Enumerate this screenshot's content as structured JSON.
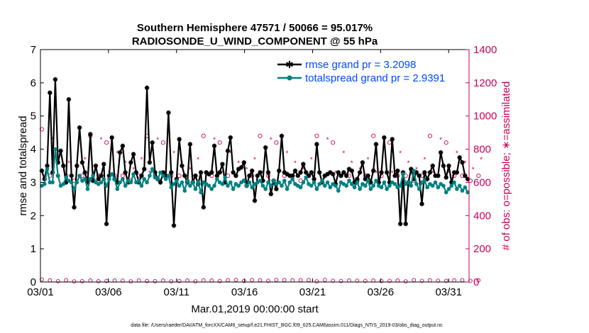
{
  "chart_data": {
    "type": "line",
    "title_line1": "Southern Hemisphere 47571 / 50066 = 95.017%",
    "title_line2": "RADIOSONDE_U_WIND_COMPONENT @ 55 hPa",
    "xlabel": "Mar.01,2019 00:00:00 start",
    "ylabel": "rmse and totalspread",
    "ylabel_right": "# of obs: o=possible; ∗=assimilated",
    "footnote": "data file: /Users/raeder/DAI/ATM_forcXX/CAM6_setup/f.e21.FHIST_BGC.f09_025.CAM6assim.011/Diags_NTrS_2019-03/obs_diag_output.nc",
    "xlim": [
      0,
      31.5
    ],
    "ylim": [
      0,
      7
    ],
    "ylim_right": [
      0,
      1400
    ],
    "x_tick_values": [
      0,
      5,
      10,
      15,
      20,
      25,
      30
    ],
    "x_tick_labels": [
      "03/01",
      "03/06",
      "03/11",
      "03/16",
      "03/21",
      "03/26",
      "03/31"
    ],
    "y_ticks": [
      0,
      1,
      2,
      3,
      4,
      5,
      6,
      7
    ],
    "y_ticks_right": [
      0,
      200,
      400,
      600,
      800,
      1000,
      1200,
      1400
    ],
    "colors": {
      "rmse": "#000000",
      "spread": "#008080",
      "obs": "#c8005a",
      "legend_text": "#0048ff"
    },
    "series": [
      {
        "name": "rmse grand pr = 3.2098",
        "key": "rmse",
        "values": [
          3.35,
          3.1,
          3.5,
          5.7,
          3.3,
          6.1,
          3.6,
          3.95,
          3.5,
          3.0,
          5.5,
          3.2,
          2.25,
          3.5,
          4.65,
          3.6,
          3.3,
          3.0,
          4.45,
          3.05,
          3.5,
          3.1,
          3.2,
          3.55,
          1.75,
          3.2,
          4.35,
          3.1,
          3.0,
          3.9,
          4.1,
          3.3,
          3.0,
          3.6,
          3.85,
          3.3,
          3.0,
          3.2,
          3.4,
          5.85,
          3.6,
          4.2,
          3.3,
          3.1,
          3.0,
          3.3,
          3.2,
          5.1,
          3.3,
          1.7,
          3.1,
          4.3,
          3.5,
          3.2,
          3.0,
          4.15,
          3.0,
          3.2,
          2.95,
          3.3,
          2.25,
          3.3,
          3.25,
          3.3,
          4.1,
          3.2,
          3.3,
          3.55,
          3.0,
          3.95,
          4.35,
          3.3,
          3.2,
          3.4,
          3.45,
          3.6,
          2.9,
          3.2,
          3.35,
          2.45,
          3.2,
          3.3,
          3.05,
          4.05,
          3.3,
          2.65,
          3.05,
          2.8,
          3.35,
          4.4,
          3.3,
          3.25,
          3.2,
          3.2,
          3.35,
          3.2,
          3.3,
          3.55,
          3.3,
          3.2,
          3.3,
          3.1,
          4.15,
          3.3,
          3.0,
          3.2,
          3.25,
          3.3,
          3.25,
          2.95,
          3.3,
          3.2,
          3.3,
          3.2,
          3.4,
          3.35,
          3.0,
          3.1,
          3.3,
          3.6,
          3.1,
          3.2,
          3.0,
          3.35,
          4.15,
          3.0,
          3.3,
          4.35,
          3.3,
          3.0,
          4.3,
          3.2,
          3.35,
          1.75,
          3.3,
          1.75,
          3.0,
          3.4,
          3.1,
          3.3,
          3.2,
          2.35,
          3.3,
          3.1,
          3.3,
          3.5,
          3.2,
          3.2,
          3.9,
          3.5,
          3.15,
          3.5,
          3.0,
          3.3,
          3.3,
          3.75,
          3.6,
          3.2,
          3.1
        ]
      },
      {
        "name": "totalspread grand pr = 2.9391",
        "key": "spread",
        "values": [
          2.9,
          2.95,
          3.4,
          3.0,
          3.0,
          4.0,
          3.2,
          2.9,
          2.95,
          3.15,
          3.05,
          3.0,
          2.8,
          3.0,
          3.2,
          3.05,
          3.1,
          2.8,
          3.1,
          3.2,
          3.0,
          2.95,
          3.0,
          3.1,
          2.9,
          3.1,
          3.25,
          3.1,
          2.8,
          3.0,
          3.1,
          2.9,
          3.05,
          3.0,
          3.25,
          3.0,
          3.05,
          2.9,
          3.1,
          3.0,
          3.2,
          3.4,
          3.15,
          3.1,
          3.3,
          3.2,
          3.1,
          3.2,
          2.85,
          2.95,
          3.05,
          2.9,
          3.0,
          2.75,
          3.05,
          2.9,
          3.0,
          2.8,
          3.0,
          2.7,
          3.0,
          2.95,
          2.9,
          2.8,
          2.9,
          3.1,
          3.0,
          2.95,
          3.15,
          2.9,
          3.0,
          2.8,
          2.95,
          2.9,
          3.0,
          3.05,
          2.9,
          3.0,
          2.85,
          2.95,
          3.0,
          3.05,
          2.9,
          2.8,
          3.0,
          2.9,
          3.05,
          2.95,
          3.0,
          2.9,
          3.05,
          2.8,
          3.0,
          3.1,
          2.95,
          2.9,
          2.85,
          3.0,
          3.15,
          2.95,
          2.9,
          3.0,
          2.8,
          2.95,
          3.05,
          2.9,
          3.0,
          2.85,
          2.95,
          2.9,
          2.75,
          3.0,
          2.95,
          2.9,
          3.05,
          2.95,
          2.85,
          3.0,
          2.8,
          2.95,
          2.9,
          3.05,
          2.8,
          2.9,
          3.05,
          2.9,
          2.85,
          3.0,
          2.8,
          2.9,
          3.0,
          2.95,
          2.85,
          2.9,
          3.25,
          2.95,
          3.0,
          2.9,
          3.35,
          2.95,
          2.8,
          3.0,
          3.05,
          2.85,
          2.95,
          2.9,
          3.0,
          2.85,
          2.95,
          2.9,
          2.7,
          2.8,
          2.9,
          3.0,
          2.8,
          2.9,
          2.75,
          2.85,
          2.7
        ]
      }
    ],
    "obs_possible_count": [
      920,
      660,
      830,
      640,
      900,
      770,
      640,
      820,
      760,
      640,
      760,
      840,
      610,
      720,
      850,
      640,
      780,
      660,
      880,
      700,
      760,
      640,
      900,
      660,
      840,
      700,
      770,
      640,
      820,
      760,
      640,
      760,
      840,
      610,
      720,
      850,
      640,
      780,
      660,
      880,
      700,
      760,
      640,
      900,
      660,
      840,
      700,
      770,
      640,
      820,
      760,
      640,
      760,
      840,
      610,
      720,
      850,
      640,
      780,
      660,
      880,
      700,
      760,
      640,
      900,
      660,
      840,
      700,
      770,
      640,
      820,
      760,
      640,
      760,
      840,
      610,
      720,
      850,
      640,
      780,
      660,
      880,
      700,
      760,
      640,
      900,
      660,
      840,
      700,
      770,
      640,
      820,
      760,
      640,
      760,
      840,
      610,
      720,
      850,
      640,
      780,
      660,
      880,
      700,
      760,
      640,
      900,
      660,
      840,
      700,
      770,
      640,
      820,
      760,
      640,
      760,
      840,
      610,
      720,
      850,
      640,
      780,
      660,
      880,
      700,
      760,
      640,
      900,
      660,
      840,
      700,
      770,
      640,
      820,
      760,
      640,
      760,
      840,
      610,
      720,
      850,
      640,
      780,
      660,
      880,
      700,
      760,
      640,
      900,
      660,
      840,
      700,
      770,
      640,
      820,
      760,
      640,
      760,
      840,
      610,
      720,
      850,
      640,
      780
    ],
    "obs_assimilated_count": [
      870,
      620,
      790,
      600,
      860,
      730,
      600,
      780,
      720,
      600,
      720,
      800,
      570,
      680,
      810,
      600,
      740,
      620,
      840,
      660,
      720,
      600,
      860,
      620,
      800,
      660,
      730,
      600,
      780,
      720,
      600,
      720,
      800,
      570,
      680,
      810,
      600,
      740,
      620,
      840,
      660,
      720,
      600,
      860,
      620,
      800,
      660,
      730,
      600,
      780,
      720,
      600,
      720,
      800,
      570,
      680,
      810,
      600,
      740,
      620,
      840,
      660,
      720,
      600,
      860,
      620,
      800,
      660,
      730,
      600,
      780,
      720,
      600,
      720,
      800,
      570,
      680,
      810,
      600,
      740,
      620,
      840,
      660,
      720,
      600,
      860,
      620,
      800,
      660,
      730,
      600,
      780,
      720,
      600,
      720,
      800,
      570,
      680,
      810,
      600,
      740,
      620,
      840,
      660,
      720,
      600,
      860,
      620,
      800,
      660,
      730,
      600,
      780,
      720,
      600,
      720,
      800,
      570,
      680,
      810,
      600,
      740,
      620,
      840,
      660,
      720,
      600,
      860,
      620,
      800,
      660,
      730,
      600,
      780,
      720,
      600,
      720,
      800,
      570,
      680,
      810,
      600,
      740,
      620,
      840,
      660,
      720,
      600,
      860,
      620,
      800,
      660,
      730,
      600,
      780,
      720,
      600,
      720,
      800,
      570,
      680,
      810,
      600,
      740
    ],
    "obs_low_count": [
      15,
      8,
      6,
      10,
      4,
      12,
      5,
      9,
      7,
      11,
      6,
      14,
      4,
      8,
      10,
      5,
      13,
      6,
      9,
      7,
      12,
      5,
      10,
      8,
      6,
      11,
      7,
      9,
      5,
      13,
      8,
      6,
      10,
      4,
      12,
      7,
      9,
      5,
      11,
      6,
      8,
      10,
      5,
      12,
      7,
      9,
      6,
      11,
      4,
      10,
      8,
      6,
      12,
      5,
      9,
      7,
      11,
      4,
      13,
      6,
      10,
      8,
      5,
      9,
      7,
      12,
      6,
      10,
      4,
      11,
      8,
      5,
      13,
      7,
      9,
      6,
      10,
      5,
      12,
      8,
      6,
      11,
      4,
      9,
      7,
      10,
      5,
      13,
      6,
      8,
      12,
      7,
      4,
      10,
      9,
      6,
      11,
      5,
      8,
      12,
      7,
      10,
      4,
      9,
      6,
      13,
      5,
      11,
      8,
      7,
      10,
      6,
      12,
      4,
      9,
      5,
      11,
      8,
      6,
      10,
      7,
      13,
      5,
      9,
      4,
      12,
      6,
      10,
      8,
      7,
      11,
      5,
      9,
      6,
      15,
      4,
      10,
      8,
      12,
      6,
      9,
      7,
      11,
      5,
      10,
      4,
      13,
      8,
      6,
      9,
      7,
      12,
      5,
      10,
      8,
      6,
      11,
      4,
      9,
      7,
      13,
      6,
      10,
      5,
      12
    ]
  }
}
